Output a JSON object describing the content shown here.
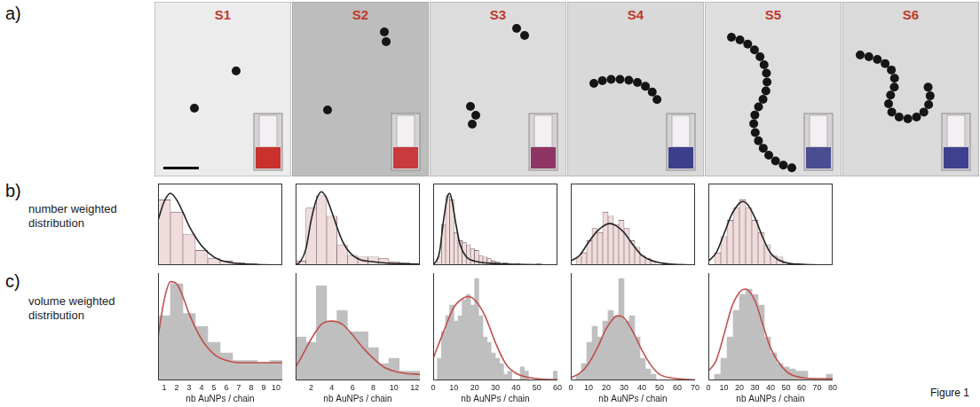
{
  "figure": {
    "panel_letters": [
      "a)",
      "b)",
      "c)"
    ],
    "row_titles": [
      "number weighted distribution",
      "volume weighted distribution"
    ],
    "samples": [
      {
        "label": "S1",
        "vial_color": "#c8312c"
      },
      {
        "label": "S2",
        "vial_color": "#c83a3e"
      },
      {
        "label": "S3",
        "vial_color": "#8f3566"
      },
      {
        "label": "S4",
        "vial_color": "#3c3f8c"
      },
      {
        "label": "S5",
        "vial_color": "#4a4d92"
      },
      {
        "label": "S6",
        "vial_color": "#3d418e"
      }
    ],
    "caption": "Figure 1"
  },
  "chart_data": [
    {
      "type": "histogram",
      "xlim": [
        0.5,
        10.5
      ],
      "ylim": [
        0,
        100
      ],
      "tick_labels": false,
      "grid": false,
      "series": [
        {
          "type": "bar",
          "bins": [
            0.5,
            1.5,
            2.5,
            3.5,
            4.5,
            5.5,
            6.5,
            7.5,
            8.5,
            9.5,
            10.5
          ],
          "values": [
            80,
            65,
            38,
            18,
            8,
            5,
            3,
            2,
            1,
            1
          ],
          "color": "#f0dcdc"
        },
        {
          "type": "line",
          "x": [
            0.5,
            1,
            1.5,
            2,
            2.5,
            3,
            4,
            5,
            6,
            8,
            10.5
          ],
          "values": [
            55,
            78,
            88,
            80,
            65,
            48,
            24,
            10,
            4,
            1,
            0
          ],
          "color": "#222222"
        }
      ]
    },
    {
      "type": "histogram",
      "xlim": [
        0.5,
        12.5
      ],
      "ylim": [
        0,
        100
      ],
      "tick_labels": false,
      "grid": false,
      "series": [
        {
          "type": "bar",
          "bins": [
            0.5,
            1.5,
            2.5,
            3.5,
            4.5,
            5.5,
            6.5,
            7.5,
            8.5,
            9.5,
            10.5,
            11.5,
            12.5
          ],
          "values": [
            5,
            70,
            85,
            60,
            25,
            12,
            10,
            10,
            8,
            4,
            3,
            2
          ],
          "color": "#f0dcdc"
        },
        {
          "type": "line",
          "x": [
            0.5,
            1,
            1.5,
            2,
            2.5,
            3,
            3.5,
            4,
            5,
            6,
            8,
            12.5
          ],
          "values": [
            0,
            5,
            20,
            55,
            80,
            90,
            82,
            65,
            30,
            12,
            4,
            1
          ],
          "color": "#222222"
        }
      ]
    },
    {
      "type": "histogram",
      "xlim": [
        0,
        60
      ],
      "ylim": [
        0,
        100
      ],
      "tick_labels": false,
      "grid": false,
      "series": [
        {
          "type": "bar",
          "bins": [
            2,
            4,
            6,
            8,
            10,
            12,
            14,
            16,
            18,
            20,
            22,
            24,
            26,
            28,
            30,
            32,
            34,
            36,
            38,
            40,
            42,
            44,
            46,
            48,
            50,
            52
          ],
          "values": [
            10,
            50,
            85,
            80,
            40,
            30,
            28,
            25,
            20,
            18,
            12,
            10,
            8,
            5,
            4,
            0,
            3,
            0,
            0,
            2,
            0,
            0,
            0,
            0,
            2
          ],
          "color": "#f0dcdc"
        },
        {
          "type": "line",
          "x": [
            0,
            3,
            5,
            7,
            8,
            9,
            11,
            13,
            16,
            20,
            30,
            60
          ],
          "values": [
            0,
            15,
            55,
            85,
            88,
            80,
            50,
            25,
            10,
            5,
            2,
            0
          ],
          "color": "#222222"
        }
      ]
    },
    {
      "type": "histogram",
      "xlim": [
        0,
        70
      ],
      "ylim": [
        0,
        100
      ],
      "tick_labels": false,
      "grid": false,
      "series": [
        {
          "type": "bar",
          "bins": [
            3,
            6,
            9,
            12,
            15,
            18,
            21,
            24,
            27,
            30,
            33,
            36,
            39,
            42,
            45,
            48
          ],
          "values": [
            10,
            15,
            30,
            45,
            40,
            65,
            60,
            50,
            55,
            45,
            30,
            22,
            12,
            8,
            5
          ],
          "color": "#f0dcdc"
        },
        {
          "type": "line",
          "x": [
            0,
            5,
            10,
            15,
            20,
            22,
            25,
            30,
            35,
            40,
            50,
            70
          ],
          "values": [
            5,
            12,
            28,
            42,
            50,
            51,
            49,
            40,
            25,
            12,
            3,
            0
          ],
          "color": "#222222"
        }
      ]
    },
    {
      "type": "histogram",
      "xlim": [
        0,
        80
      ],
      "ylim": [
        0,
        100
      ],
      "tick_labels": false,
      "grid": false,
      "series": [
        {
          "type": "bar",
          "bins": [
            4,
            8,
            12,
            16,
            20,
            24,
            28,
            32,
            36,
            40,
            44,
            48,
            52
          ],
          "values": [
            15,
            35,
            55,
            70,
            80,
            70,
            55,
            40,
            25,
            12,
            10,
            3
          ],
          "color": "#f0dcdc"
        },
        {
          "type": "line",
          "x": [
            0,
            5,
            10,
            15,
            20,
            22,
            25,
            30,
            35,
            40,
            50,
            60,
            80
          ],
          "values": [
            5,
            15,
            38,
            62,
            76,
            78,
            75,
            58,
            34,
            15,
            3,
            1,
            0
          ],
          "color": "#222222"
        }
      ]
    },
    {
      "type": "histogram",
      "xlim": [
        0.5,
        10.5
      ],
      "xticks": [
        1,
        2,
        3,
        4,
        5,
        6,
        7,
        8,
        9,
        10
      ],
      "ylim": [
        0,
        100
      ],
      "tick_labels": "x",
      "grid": false,
      "x_label": "nb AuNPs / chain",
      "series": [
        {
          "type": "bar",
          "bins": [
            0.5,
            1.5,
            2.5,
            3.5,
            4.5,
            5.5,
            6.5,
            7.5,
            8.5,
            9.5,
            10.5
          ],
          "values": [
            60,
            90,
            62,
            50,
            35,
            25,
            18,
            18,
            16,
            18
          ],
          "color": "#bfbfbf"
        },
        {
          "type": "line",
          "x": [
            0.5,
            1,
            1.5,
            2,
            2.5,
            3,
            4,
            5,
            6,
            7,
            8,
            10.5
          ],
          "values": [
            40,
            75,
            92,
            90,
            78,
            62,
            38,
            24,
            18,
            16,
            16,
            16
          ],
          "color": "#c0504d"
        }
      ]
    },
    {
      "type": "histogram",
      "xlim": [
        0.5,
        12.5
      ],
      "xticks": [
        2,
        4,
        6,
        8,
        10,
        12
      ],
      "ylim": [
        0,
        100
      ],
      "tick_labels": "x",
      "grid": false,
      "x_label": "nb AuNPs / chain",
      "series": [
        {
          "type": "bar",
          "bins": [
            0.5,
            1.5,
            2.5,
            3.5,
            4.5,
            5.5,
            6.5,
            7.5,
            8.5,
            9.5,
            10.5,
            11.5,
            12.5
          ],
          "values": [
            40,
            35,
            88,
            55,
            65,
            45,
            45,
            30,
            15,
            20,
            8,
            8
          ],
          "color": "#bfbfbf"
        },
        {
          "type": "line",
          "x": [
            0.5,
            1,
            2,
            3,
            4,
            5,
            6,
            7,
            8,
            9,
            10,
            11,
            12.5
          ],
          "values": [
            12,
            20,
            38,
            52,
            55,
            52,
            42,
            30,
            20,
            12,
            8,
            6,
            5
          ],
          "color": "#c0504d"
        }
      ]
    },
    {
      "type": "histogram",
      "xlim": [
        0,
        60
      ],
      "xticks": [
        0,
        10,
        20,
        30,
        40,
        50,
        60
      ],
      "ylim": [
        0,
        100
      ],
      "tick_labels": "x",
      "grid": false,
      "x_label": "nb AuNPs / chain",
      "series": [
        {
          "type": "bar",
          "bins": [
            2,
            4,
            6,
            8,
            10,
            12,
            14,
            16,
            18,
            20,
            22,
            24,
            26,
            28,
            30,
            32,
            34,
            36,
            38,
            40,
            42,
            44,
            46,
            48,
            50,
            52,
            54,
            56,
            58,
            60
          ],
          "values": [
            20,
            45,
            60,
            70,
            55,
            60,
            75,
            80,
            70,
            95,
            60,
            40,
            35,
            25,
            20,
            15,
            5,
            8,
            0,
            0,
            12,
            8,
            0,
            0,
            0,
            0,
            0,
            0,
            8
          ],
          "color": "#bfbfbf"
        },
        {
          "type": "line",
          "x": [
            0,
            5,
            10,
            15,
            17,
            20,
            25,
            30,
            35,
            40,
            50,
            60
          ],
          "values": [
            20,
            45,
            68,
            77,
            78,
            75,
            60,
            35,
            15,
            6,
            1,
            0
          ],
          "color": "#c0504d"
        }
      ]
    },
    {
      "type": "histogram",
      "xlim": [
        0,
        70
      ],
      "xticks": [
        0,
        10,
        20,
        30,
        40,
        50,
        60,
        70
      ],
      "ylim": [
        0,
        100
      ],
      "tick_labels": "x",
      "grid": false,
      "x_label": "nb AuNPs / chain",
      "series": [
        {
          "type": "bar",
          "bins": [
            3,
            6,
            9,
            12,
            15,
            18,
            21,
            24,
            27,
            30,
            33,
            36,
            39,
            42,
            45,
            48
          ],
          "values": [
            5,
            15,
            35,
            50,
            40,
            55,
            65,
            60,
            95,
            55,
            60,
            40,
            20,
            10,
            5
          ],
          "color": "#bfbfbf"
        },
        {
          "type": "line",
          "x": [
            0,
            5,
            10,
            15,
            20,
            25,
            27,
            30,
            35,
            40,
            45,
            50,
            60,
            70
          ],
          "values": [
            2,
            6,
            15,
            30,
            48,
            59,
            60,
            58,
            45,
            28,
            14,
            5,
            1,
            0
          ],
          "color": "#c0504d"
        }
      ]
    },
    {
      "type": "histogram",
      "xlim": [
        0,
        80
      ],
      "xticks": [
        0,
        10,
        20,
        30,
        40,
        50,
        60,
        70,
        80
      ],
      "ylim": [
        0,
        100
      ],
      "tick_labels": "x",
      "grid": false,
      "x_label": "nb AuNPs / chain",
      "series": [
        {
          "type": "bar",
          "bins": [
            4,
            8,
            12,
            16,
            20,
            24,
            28,
            32,
            36,
            40,
            44,
            48,
            52,
            56,
            60,
            64,
            68,
            72,
            76,
            80
          ],
          "values": [
            5,
            20,
            40,
            65,
            80,
            85,
            80,
            70,
            40,
            25,
            15,
            12,
            10,
            8,
            8,
            0,
            0,
            0,
            5
          ],
          "color": "#bfbfbf"
        },
        {
          "type": "line",
          "x": [
            0,
            5,
            10,
            15,
            20,
            24,
            30,
            35,
            40,
            50,
            60,
            70,
            80
          ],
          "values": [
            8,
            18,
            42,
            68,
            82,
            85,
            74,
            52,
            30,
            8,
            2,
            1,
            1
          ],
          "color": "#c0504d"
        }
      ]
    }
  ]
}
